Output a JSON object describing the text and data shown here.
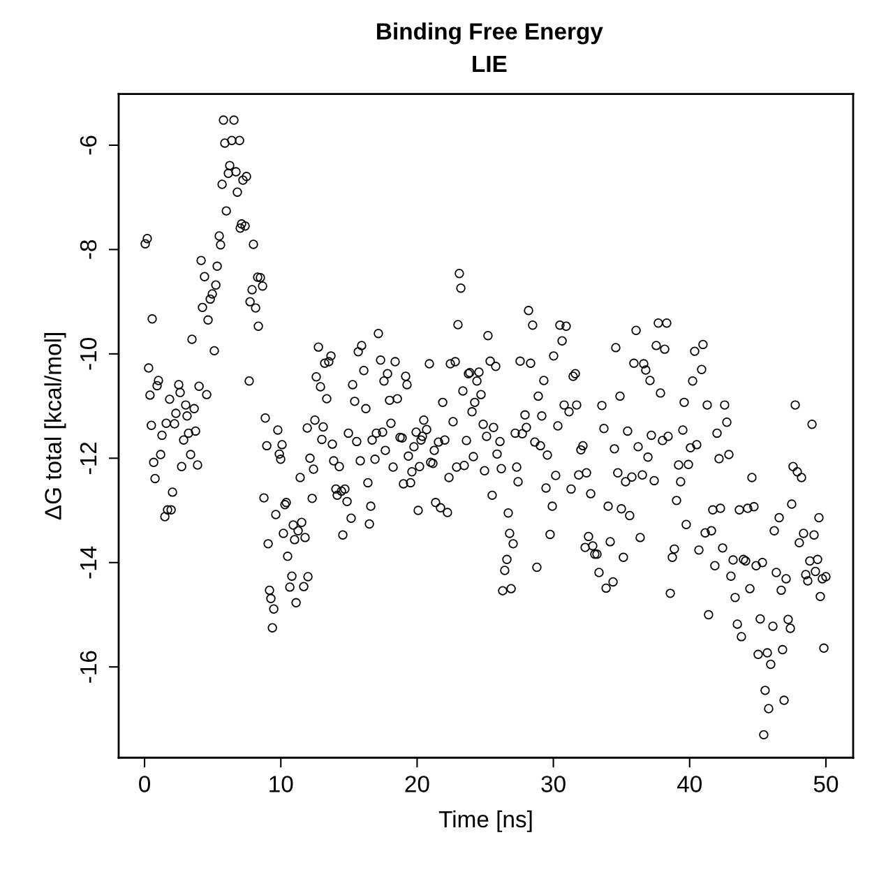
{
  "chart_data": {
    "type": "scatter",
    "title": "Binding Free Energy",
    "subtitle": "LIE",
    "xlabel": "Time [ns]",
    "ylabel": "ΔG total [kcal/mol]",
    "xlim": [
      -1.9,
      52.0
    ],
    "ylim": [
      -17.74,
      -5.02
    ],
    "xticks": [
      0,
      10,
      20,
      30,
      40,
      50
    ],
    "yticks": [
      -16,
      -14,
      -12,
      -10,
      -8,
      -6
    ],
    "marker": "circle",
    "series": [
      {
        "color": "#000000",
        "x": [
          0.05,
          0.2,
          0.3,
          0.4,
          0.5,
          0.56,
          0.67,
          0.77,
          0.92,
          1.02,
          1.18,
          1.28,
          1.49,
          1.59,
          1.69,
          1.84,
          1.95,
          2.05,
          2.2,
          2.3,
          2.51,
          2.61,
          2.72,
          2.87,
          3.02,
          3.12,
          3.23,
          3.38,
          3.48,
          3.64,
          3.74,
          3.89,
          4.0,
          4.15,
          4.25,
          4.4,
          4.56,
          4.66,
          4.82,
          4.97,
          5.12,
          5.23,
          5.33,
          5.48,
          5.58,
          5.69,
          5.79,
          5.89,
          6.0,
          6.15,
          6.25,
          6.4,
          6.56,
          6.71,
          6.81,
          6.97,
          7.02,
          7.12,
          7.22,
          7.38,
          7.48,
          7.68,
          7.74,
          7.89,
          7.99,
          8.15,
          8.3,
          8.35,
          8.5,
          8.66,
          8.76,
          8.86,
          8.97,
          9.07,
          9.17,
          9.27,
          9.38,
          9.48,
          9.63,
          9.78,
          9.89,
          9.99,
          10.09,
          10.19,
          10.3,
          10.4,
          10.5,
          10.66,
          10.81,
          10.91,
          11.01,
          11.12,
          11.27,
          11.42,
          11.53,
          11.68,
          11.78,
          11.94,
          11.99,
          12.14,
          12.3,
          12.4,
          12.5,
          12.6,
          12.76,
          12.91,
          13.01,
          13.11,
          13.22,
          13.37,
          13.52,
          13.68,
          13.78,
          13.88,
          14.04,
          14.14,
          14.29,
          14.45,
          14.55,
          14.7,
          14.86,
          14.96,
          15.16,
          15.27,
          15.42,
          15.57,
          15.68,
          15.83,
          15.93,
          16.09,
          16.24,
          16.39,
          16.5,
          16.6,
          16.7,
          16.91,
          17.01,
          17.16,
          17.32,
          17.47,
          17.57,
          17.67,
          17.83,
          17.98,
          18.08,
          18.24,
          18.39,
          18.55,
          18.75,
          18.9,
          19.0,
          19.16,
          19.26,
          19.36,
          19.52,
          19.62,
          19.77,
          19.93,
          20.08,
          20.18,
          20.29,
          20.39,
          20.49,
          20.7,
          20.9,
          21.0,
          21.16,
          21.26,
          21.36,
          21.57,
          21.72,
          21.88,
          22.03,
          22.23,
          22.34,
          22.44,
          22.64,
          22.8,
          22.9,
          23.0,
          23.1,
          23.21,
          23.36,
          23.46,
          23.62,
          23.77,
          23.87,
          24.03,
          24.13,
          24.23,
          24.39,
          24.54,
          24.69,
          24.85,
          24.95,
          25.1,
          25.2,
          25.36,
          25.51,
          25.61,
          25.77,
          25.87,
          26.08,
          26.18,
          26.28,
          26.43,
          26.59,
          26.69,
          26.79,
          26.9,
          27.05,
          27.2,
          27.31,
          27.41,
          27.56,
          27.72,
          27.92,
          28.02,
          28.18,
          28.33,
          28.48,
          28.64,
          28.79,
          28.89,
          29.05,
          29.15,
          29.3,
          29.46,
          29.56,
          29.76,
          29.92,
          30.02,
          30.17,
          30.33,
          30.48,
          30.64,
          30.79,
          30.94,
          31.15,
          31.3,
          31.45,
          31.61,
          31.71,
          31.86,
          32.02,
          32.17,
          32.33,
          32.43,
          32.58,
          32.74,
          32.89,
          33.04,
          33.2,
          33.35,
          33.56,
          33.71,
          33.87,
          34.02,
          34.17,
          34.38,
          34.48,
          34.58,
          34.73,
          34.89,
          34.99,
          35.14,
          35.3,
          35.45,
          35.6,
          35.76,
          35.91,
          36.07,
          36.22,
          36.37,
          36.53,
          36.63,
          36.78,
          36.94,
          37.09,
          37.19,
          37.4,
          37.55,
          37.7,
          37.86,
          38.01,
          38.17,
          38.32,
          38.42,
          38.58,
          38.73,
          38.88,
          39.04,
          39.19,
          39.34,
          39.5,
          39.6,
          39.75,
          39.91,
          40.06,
          40.22,
          40.37,
          40.52,
          40.68,
          40.88,
          40.98,
          41.14,
          41.29,
          41.39,
          41.6,
          41.7,
          41.85,
          42.01,
          42.16,
          42.26,
          42.42,
          42.57,
          42.73,
          42.88,
          43.03,
          43.19,
          43.34,
          43.5,
          43.65,
          43.8,
          43.95,
          44.11,
          44.26,
          44.42,
          44.57,
          44.72,
          44.88,
          45.03,
          45.18,
          45.34,
          45.44,
          45.54,
          45.7,
          45.8,
          45.95,
          46.11,
          46.21,
          46.36,
          46.57,
          46.72,
          46.82,
          46.93,
          47.08,
          47.23,
          47.39,
          47.49,
          47.59,
          47.75,
          47.9,
          48.05,
          48.21,
          48.36,
          48.52,
          48.67,
          48.82,
          48.98,
          49.13,
          49.23,
          49.39,
          49.49,
          49.59,
          49.74,
          49.85,
          50.0
        ],
        "values": [
          -7.89,
          -7.79,
          -10.27,
          -10.79,
          -11.37,
          -9.33,
          -12.08,
          -12.39,
          -10.61,
          -10.51,
          -11.93,
          -11.56,
          -13.12,
          -11.33,
          -12.99,
          -10.87,
          -12.99,
          -12.65,
          -11.34,
          -11.14,
          -10.59,
          -10.74,
          -12.16,
          -11.65,
          -10.98,
          -11.19,
          -11.52,
          -11.93,
          -9.72,
          -11.05,
          -11.48,
          -12.13,
          -10.62,
          -8.21,
          -9.11,
          -8.52,
          -10.78,
          -9.35,
          -8.95,
          -8.85,
          -9.94,
          -8.68,
          -8.32,
          -7.74,
          -7.91,
          -6.75,
          -5.52,
          -5.96,
          -7.26,
          -6.54,
          -6.39,
          -5.91,
          -5.52,
          -6.51,
          -6.9,
          -5.91,
          -7.59,
          -7.51,
          -6.67,
          -7.55,
          -6.6,
          -10.52,
          -9.0,
          -8.77,
          -7.9,
          -9.12,
          -8.53,
          -9.47,
          -8.54,
          -8.7,
          -12.76,
          -11.23,
          -11.76,
          -13.64,
          -14.53,
          -14.69,
          -15.25,
          -14.89,
          -13.08,
          -11.46,
          -11.92,
          -12.02,
          -11.74,
          -13.44,
          -12.89,
          -12.85,
          -13.88,
          -14.47,
          -14.26,
          -13.28,
          -13.56,
          -14.77,
          -13.39,
          -12.37,
          -13.23,
          -14.46,
          -13.52,
          -11.42,
          -14.27,
          -12.0,
          -12.77,
          -12.21,
          -11.27,
          -10.44,
          -9.87,
          -10.63,
          -11.64,
          -11.4,
          -10.18,
          -10.86,
          -10.15,
          -10.04,
          -11.73,
          -12.05,
          -12.59,
          -12.71,
          -12.16,
          -12.63,
          -13.47,
          -12.59,
          -12.83,
          -11.52,
          -13.15,
          -10.59,
          -10.91,
          -11.68,
          -9.96,
          -12.05,
          -9.84,
          -10.32,
          -11.05,
          -12.47,
          -13.26,
          -12.92,
          -11.65,
          -12.02,
          -11.52,
          -9.61,
          -10.12,
          -11.5,
          -10.52,
          -11.85,
          -10.38,
          -10.89,
          -11.33,
          -12.17,
          -10.15,
          -10.86,
          -11.6,
          -11.61,
          -12.49,
          -10.43,
          -10.59,
          -11.96,
          -12.47,
          -12.26,
          -11.78,
          -11.5,
          -13.0,
          -12.16,
          -11.65,
          -11.58,
          -11.27,
          -11.45,
          -10.19,
          -12.08,
          -12.1,
          -11.85,
          -12.85,
          -11.69,
          -12.95,
          -10.93,
          -11.65,
          -13.04,
          -12.37,
          -10.19,
          -11.3,
          -10.15,
          -12.17,
          -9.44,
          -8.46,
          -8.74,
          -10.71,
          -12.14,
          -11.66,
          -10.38,
          -10.36,
          -11.11,
          -11.97,
          -10.93,
          -10.52,
          -10.35,
          -10.78,
          -11.35,
          -12.24,
          -11.58,
          -9.65,
          -10.14,
          -12.71,
          -11.41,
          -10.24,
          -11.92,
          -11.68,
          -12.2,
          -14.54,
          -14.15,
          -13.94,
          -13.05,
          -13.44,
          -14.5,
          -13.64,
          -11.52,
          -12.17,
          -12.45,
          -10.14,
          -11.53,
          -11.17,
          -11.41,
          -9.17,
          -10.18,
          -9.45,
          -11.69,
          -14.09,
          -10.81,
          -11.76,
          -11.19,
          -10.51,
          -12.57,
          -11.94,
          -13.46,
          -12.92,
          -10.04,
          -12.33,
          -11.38,
          -9.45,
          -9.75,
          -10.98,
          -9.47,
          -11.11,
          -12.59,
          -10.43,
          -10.38,
          -10.98,
          -12.32,
          -11.84,
          -11.76,
          -13.71,
          -12.28,
          -13.5,
          -12.68,
          -13.68,
          -13.84,
          -13.84,
          -14.19,
          -10.99,
          -11.43,
          -14.49,
          -12.92,
          -13.6,
          -14.37,
          -11.82,
          -9.88,
          -12.28,
          -10.81,
          -12.97,
          -13.9,
          -12.45,
          -11.48,
          -13.1,
          -12.36,
          -10.18,
          -9.55,
          -11.78,
          -13.52,
          -12.32,
          -10.19,
          -10.31,
          -11.98,
          -10.51,
          -11.56,
          -12.43,
          -9.84,
          -9.41,
          -10.75,
          -11.66,
          -9.91,
          -9.41,
          -11.58,
          -14.59,
          -13.9,
          -13.74,
          -12.81,
          -12.13,
          -12.45,
          -11.46,
          -10.93,
          -13.27,
          -12.12,
          -11.8,
          -10.52,
          -9.95,
          -11.74,
          -13.76,
          -10.3,
          -9.82,
          -13.43,
          -10.98,
          -15.0,
          -13.39,
          -12.99,
          -14.06,
          -11.52,
          -12.01,
          -12.96,
          -13.72,
          -10.98,
          -11.31,
          -11.93,
          -14.26,
          -13.95,
          -14.67,
          -15.18,
          -12.99,
          -15.42,
          -13.94,
          -13.97,
          -12.96,
          -14.5,
          -12.37,
          -12.93,
          -14.06,
          -15.76,
          -15.08,
          -14.0,
          -17.3,
          -16.45,
          -15.73,
          -16.8,
          -15.95,
          -15.22,
          -13.39,
          -14.19,
          -13.14,
          -14.53,
          -15.67,
          -16.64,
          -14.31,
          -15.09,
          -15.26,
          -12.88,
          -12.16,
          -10.98,
          -12.26,
          -13.62,
          -12.37,
          -13.44,
          -14.23,
          -14.35,
          -13.97,
          -11.35,
          -13.47,
          -14.17,
          -13.94,
          -13.14,
          -14.65,
          -14.31,
          -15.64,
          -14.27
        ]
      }
    ]
  }
}
